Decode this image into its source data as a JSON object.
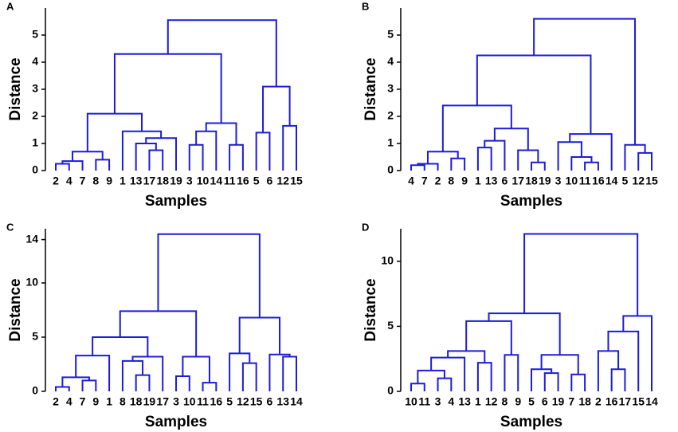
{
  "chart_data": [
    {
      "type": "dendrogram",
      "panel": "A",
      "xlabel": "Samples",
      "ylabel": "Distance",
      "color": "#1c1cd9",
      "categories": [
        "2",
        "4",
        "7",
        "8",
        "9",
        "1",
        "13",
        "17",
        "18",
        "19",
        "3",
        "10",
        "14",
        "11",
        "16",
        "5",
        "6",
        "12",
        "15"
      ],
      "ylim": [
        0,
        6
      ],
      "yticks": [
        0,
        1,
        2,
        3,
        4,
        5
      ],
      "merges": [
        {
          "children": [
            0,
            1
          ],
          "height": 0.25
        },
        {
          "children": [
            19,
            2
          ],
          "height": 0.35
        },
        {
          "children": [
            3,
            4
          ],
          "height": 0.4
        },
        {
          "children": [
            20,
            21
          ],
          "height": 0.7
        },
        {
          "children": [
            7,
            8
          ],
          "height": 0.75
        },
        {
          "children": [
            6,
            23
          ],
          "height": 1.0
        },
        {
          "children": [
            24,
            9
          ],
          "height": 1.2
        },
        {
          "children": [
            5,
            25
          ],
          "height": 1.45
        },
        {
          "children": [
            22,
            26
          ],
          "height": 2.1
        },
        {
          "children": [
            10,
            11
          ],
          "height": 0.95
        },
        {
          "children": [
            28,
            12
          ],
          "height": 1.45
        },
        {
          "children": [
            13,
            14
          ],
          "height": 0.95
        },
        {
          "children": [
            29,
            30
          ],
          "height": 1.75
        },
        {
          "children": [
            27,
            31
          ],
          "height": 4.3
        },
        {
          "children": [
            15,
            16
          ],
          "height": 1.4
        },
        {
          "children": [
            17,
            18
          ],
          "height": 1.65
        },
        {
          "children": [
            33,
            34
          ],
          "height": 3.1
        },
        {
          "children": [
            32,
            35
          ],
          "height": 5.55
        }
      ]
    },
    {
      "type": "dendrogram",
      "panel": "B",
      "xlabel": "Samples",
      "ylabel": "Distance",
      "color": "#1c1cd9",
      "categories": [
        "4",
        "7",
        "2",
        "8",
        "9",
        "1",
        "13",
        "6",
        "17",
        "18",
        "19",
        "3",
        "10",
        "11",
        "16",
        "14",
        "5",
        "12",
        "15"
      ],
      "ylim": [
        0,
        6
      ],
      "yticks": [
        0,
        1,
        2,
        3,
        4,
        5
      ],
      "merges": [
        {
          "children": [
            0,
            1
          ],
          "height": 0.2
        },
        {
          "children": [
            19,
            2
          ],
          "height": 0.25
        },
        {
          "children": [
            3,
            4
          ],
          "height": 0.45
        },
        {
          "children": [
            20,
            21
          ],
          "height": 0.7
        },
        {
          "children": [
            5,
            6
          ],
          "height": 0.85
        },
        {
          "children": [
            23,
            7
          ],
          "height": 1.1
        },
        {
          "children": [
            9,
            10
          ],
          "height": 0.3
        },
        {
          "children": [
            8,
            25
          ],
          "height": 0.75
        },
        {
          "children": [
            24,
            26
          ],
          "height": 1.55
        },
        {
          "children": [
            22,
            27
          ],
          "height": 2.4
        },
        {
          "children": [
            13,
            14
          ],
          "height": 0.3
        },
        {
          "children": [
            12,
            29
          ],
          "height": 0.5
        },
        {
          "children": [
            11,
            30
          ],
          "height": 1.05
        },
        {
          "children": [
            31,
            15
          ],
          "height": 1.35
        },
        {
          "children": [
            28,
            32
          ],
          "height": 4.25
        },
        {
          "children": [
            17,
            18
          ],
          "height": 0.65
        },
        {
          "children": [
            16,
            34
          ],
          "height": 0.95
        },
        {
          "children": [
            33,
            35
          ],
          "height": 5.6
        }
      ]
    },
    {
      "type": "dendrogram",
      "panel": "C",
      "xlabel": "Samples",
      "ylabel": "Distance",
      "color": "#1c1cd9",
      "categories": [
        "2",
        "4",
        "7",
        "9",
        "1",
        "8",
        "18",
        "19",
        "17",
        "3",
        "10",
        "11",
        "16",
        "5",
        "12",
        "15",
        "6",
        "13",
        "14"
      ],
      "ylim": [
        0,
        15
      ],
      "yticks": [
        0,
        5,
        10,
        14
      ],
      "merges": [
        {
          "children": [
            0,
            1
          ],
          "height": 0.4
        },
        {
          "children": [
            2,
            3
          ],
          "height": 1.0
        },
        {
          "children": [
            19,
            20
          ],
          "height": 1.3
        },
        {
          "children": [
            21,
            4
          ],
          "height": 3.3
        },
        {
          "children": [
            6,
            7
          ],
          "height": 1.5
        },
        {
          "children": [
            5,
            23
          ],
          "height": 2.8
        },
        {
          "children": [
            24,
            8
          ],
          "height": 3.2
        },
        {
          "children": [
            22,
            25
          ],
          "height": 5.0
        },
        {
          "children": [
            9,
            10
          ],
          "height": 1.4
        },
        {
          "children": [
            11,
            12
          ],
          "height": 0.8
        },
        {
          "children": [
            27,
            28
          ],
          "height": 3.2
        },
        {
          "children": [
            26,
            29
          ],
          "height": 7.4
        },
        {
          "children": [
            14,
            15
          ],
          "height": 2.6
        },
        {
          "children": [
            13,
            31
          ],
          "height": 3.5
        },
        {
          "children": [
            17,
            18
          ],
          "height": 3.2
        },
        {
          "children": [
            16,
            33
          ],
          "height": 3.4
        },
        {
          "children": [
            32,
            34
          ],
          "height": 6.8
        },
        {
          "children": [
            30,
            35
          ],
          "height": 14.5
        }
      ]
    },
    {
      "type": "dendrogram",
      "panel": "D",
      "xlabel": "Samples",
      "ylabel": "Distance",
      "color": "#1c1cd9",
      "categories": [
        "10",
        "11",
        "3",
        "4",
        "13",
        "1",
        "12",
        "8",
        "9",
        "5",
        "6",
        "19",
        "7",
        "18",
        "2",
        "16",
        "17",
        "15",
        "14"
      ],
      "ylim": [
        0,
        12.5
      ],
      "yticks": [
        0,
        5,
        10
      ],
      "merges": [
        {
          "children": [
            0,
            1
          ],
          "height": 0.6
        },
        {
          "children": [
            2,
            3
          ],
          "height": 1.0
        },
        {
          "children": [
            19,
            20
          ],
          "height": 1.6
        },
        {
          "children": [
            21,
            4
          ],
          "height": 2.6
        },
        {
          "children": [
            5,
            6
          ],
          "height": 2.2
        },
        {
          "children": [
            22,
            23
          ],
          "height": 3.1
        },
        {
          "children": [
            7,
            8
          ],
          "height": 2.8
        },
        {
          "children": [
            24,
            25
          ],
          "height": 5.4
        },
        {
          "children": [
            10,
            11
          ],
          "height": 1.4
        },
        {
          "children": [
            9,
            27
          ],
          "height": 1.7
        },
        {
          "children": [
            12,
            13
          ],
          "height": 1.3
        },
        {
          "children": [
            28,
            29
          ],
          "height": 2.8
        },
        {
          "children": [
            26,
            30
          ],
          "height": 6.0
        },
        {
          "children": [
            15,
            16
          ],
          "height": 1.7
        },
        {
          "children": [
            14,
            32
          ],
          "height": 3.1
        },
        {
          "children": [
            33,
            17
          ],
          "height": 4.6
        },
        {
          "children": [
            34,
            18
          ],
          "height": 5.8
        },
        {
          "children": [
            31,
            35
          ],
          "height": 12.1
        }
      ]
    }
  ]
}
